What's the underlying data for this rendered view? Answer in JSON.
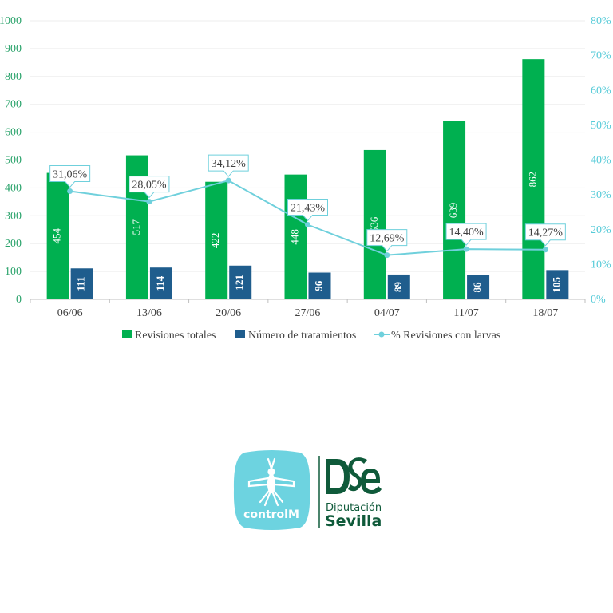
{
  "chart_data": {
    "type": "bar",
    "categories": [
      "06/06",
      "13/06",
      "20/06",
      "27/06",
      "04/07",
      "11/07",
      "18/07"
    ],
    "series": [
      {
        "name": "Revisiones totales",
        "kind": "bar",
        "axis": "left",
        "color": "#00b050",
        "values": [
          454,
          517,
          422,
          448,
          536,
          639,
          862
        ],
        "labels": [
          "454",
          "517",
          "422",
          "448",
          "536",
          "639",
          "862"
        ]
      },
      {
        "name": "Número de tratamientos",
        "kind": "bar",
        "axis": "left",
        "color": "#1f5d8d",
        "values": [
          111,
          114,
          121,
          96,
          89,
          86,
          105
        ],
        "labels": [
          "111",
          "114",
          "121",
          "96",
          "89",
          "86",
          "105"
        ]
      },
      {
        "name": "% Revisiones con larvas",
        "kind": "line",
        "axis": "right",
        "color": "#6fd0dc",
        "values": [
          31.06,
          28.05,
          34.12,
          21.43,
          12.69,
          14.4,
          14.27
        ],
        "labels": [
          "31,06%",
          "28,05%",
          "34,12%",
          "21,43%",
          "12,69%",
          "14,40%",
          "14,27%"
        ]
      }
    ],
    "ylim": [
      0,
      1000
    ],
    "yticks": [
      0,
      100,
      200,
      300,
      400,
      500,
      600,
      700,
      800,
      900,
      1000
    ],
    "ytick_labels": [
      "0",
      "100",
      "200",
      "300",
      "400",
      "500",
      "600",
      "700",
      "800",
      "900",
      "1000"
    ],
    "y2lim": [
      0,
      80
    ],
    "y2ticks": [
      0,
      10,
      20,
      30,
      40,
      50,
      60,
      70,
      80
    ],
    "y2tick_labels": [
      "0%",
      "10%",
      "20%",
      "30%",
      "40%",
      "50%",
      "60%",
      "70%",
      "80%"
    ],
    "grid": true,
    "legend_position": "bottom",
    "axis_color_left": "#2aa36b",
    "axis_color_right": "#56cbd8"
  },
  "logos": {
    "controlm": {
      "text": "controlM",
      "color": "#6dd3e0"
    },
    "diputacion": {
      "mark": "DSe",
      "line1": "Diputación",
      "line2": "Sevilla",
      "color": "#0f5a3a"
    }
  }
}
